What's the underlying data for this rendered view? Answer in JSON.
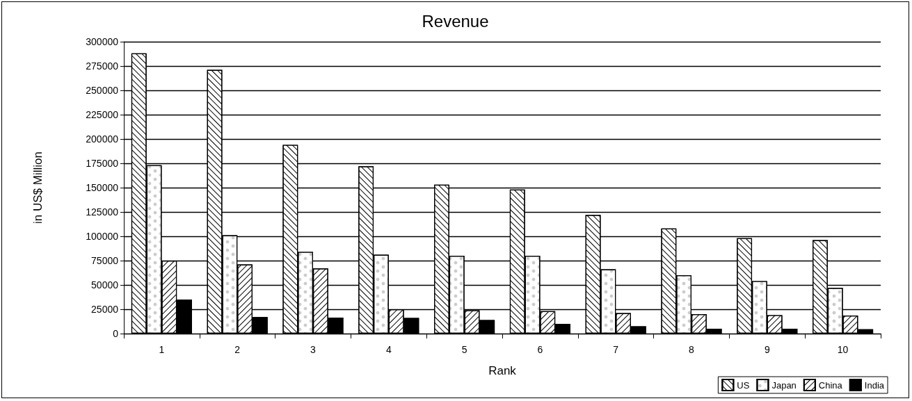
{
  "chart_data": {
    "type": "bar",
    "title": "Revenue",
    "xlabel": "Rank",
    "ylabel": "in US$ Million",
    "categories": [
      "1",
      "2",
      "3",
      "4",
      "5",
      "6",
      "7",
      "8",
      "9",
      "10"
    ],
    "series": [
      {
        "name": "US",
        "color": "#ffffff",
        "values": [
          288000,
          271000,
          194000,
          172000,
          153000,
          148000,
          122000,
          108000,
          98000,
          96000
        ]
      },
      {
        "name": "Japan",
        "color": "#ffffff",
        "values": [
          173000,
          101000,
          84000,
          81000,
          80000,
          80000,
          66000,
          60000,
          54000,
          47000
        ]
      },
      {
        "name": "China",
        "color": "#ffffff",
        "values": [
          75000,
          71000,
          67000,
          25000,
          24000,
          23000,
          21000,
          20000,
          19000,
          18500
        ]
      },
      {
        "name": "India",
        "color": "#000000",
        "values": [
          35000,
          17000,
          16500,
          16000,
          14000,
          10000,
          7500,
          5000,
          5000,
          4500
        ]
      }
    ],
    "ylim": [
      0,
      300000
    ],
    "yticks": [
      0,
      25000,
      50000,
      75000,
      100000,
      125000,
      150000,
      175000,
      200000,
      225000,
      250000,
      275000,
      300000
    ],
    "grid": "y",
    "legend": "bottom right"
  }
}
